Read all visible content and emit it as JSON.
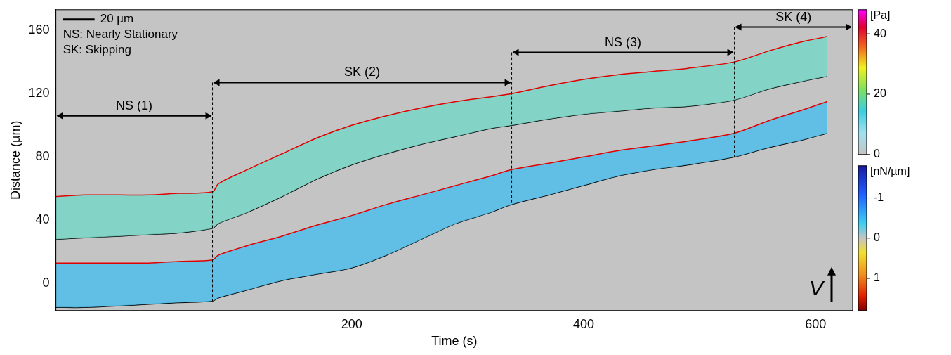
{
  "chart_data": {
    "type": "line",
    "x_label": "Time (s)",
    "y_label": "Distance (µm)",
    "xlim": [
      -55,
      632
    ],
    "ylim": [
      -17,
      173
    ],
    "xticks": [
      200,
      400,
      600
    ],
    "yticks": [
      0,
      40,
      80,
      120,
      160
    ],
    "grid": false,
    "x": [
      -55,
      -30,
      0,
      25,
      50,
      80,
      85,
      110,
      140,
      170,
      200,
      230,
      260,
      290,
      320,
      338,
      370,
      400,
      430,
      460,
      490,
      530,
      560,
      590,
      610
    ],
    "series": [
      {
        "color": "#e00000",
        "values": [
          55,
          56,
          56,
          56,
          57,
          58,
          63,
          72,
          82,
          92,
          100,
          106,
          111,
          115,
          118,
          120,
          125,
          129,
          132,
          134,
          136,
          140,
          147,
          153,
          156
        ]
      },
      {
        "color": "#000000",
        "values": [
          28,
          29,
          30,
          31,
          32,
          35,
          38,
          45,
          55,
          66,
          75,
          82,
          88,
          93,
          98,
          100,
          104,
          107,
          109,
          111,
          112,
          116,
          123,
          128,
          131
        ]
      },
      {
        "color": "#e00000",
        "values": [
          13,
          13,
          13,
          13,
          14,
          15,
          18,
          24,
          30,
          37,
          43,
          50,
          56,
          62,
          68,
          72,
          76,
          80,
          84,
          87,
          90,
          95,
          103,
          110,
          115
        ]
      },
      {
        "color": "#000000",
        "values": [
          -15,
          -15,
          -14,
          -13,
          -12,
          -11,
          -9,
          -4,
          2,
          6,
          10,
          18,
          28,
          38,
          45,
          50,
          56,
          62,
          68,
          72,
          75,
          80,
          86,
          91,
          95
        ]
      }
    ],
    "phases": [
      {
        "label": "NS (1)",
        "start": -55,
        "end": 80,
        "y": 106
      },
      {
        "label": "SK (2)",
        "start": 80,
        "end": 338,
        "y": 127
      },
      {
        "label": "NS (3)",
        "start": 338,
        "end": 530,
        "y": 146
      },
      {
        "label": "SK (4)",
        "start": 530,
        "end": 632,
        "y": 162
      }
    ],
    "scale_bar": {
      "label": "20 µm",
      "length": 20
    },
    "notes": [
      "NS: Nearly Stationary",
      "SK: Skipping"
    ],
    "velocity_label": "V",
    "colorbars": [
      {
        "label": "[Pa]",
        "range": [
          0,
          48
        ],
        "ticks": [
          0,
          20,
          40
        ]
      },
      {
        "label": "[nN/µm]",
        "range": [
          -1.8,
          1.8
        ],
        "ticks": [
          -1,
          0,
          1
        ]
      }
    ]
  }
}
